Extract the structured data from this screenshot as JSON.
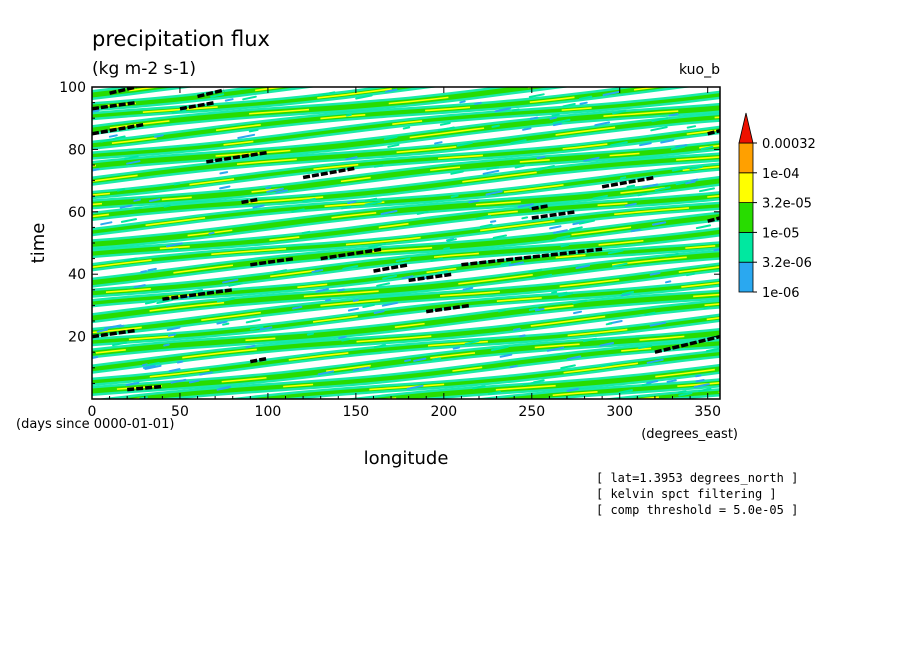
{
  "chart_data": {
    "type": "heatmap",
    "title": "precipitation flux",
    "subtitle": "(kg m-2 s-1)",
    "run_label": "kuo_b",
    "xlabel": "longitude",
    "ylabel": "time",
    "x_units": "(degrees_east)",
    "y_units": "(days since 0000-01-01)",
    "xlim": [
      0,
      357
    ],
    "ylim": [
      0,
      100
    ],
    "x_ticks": [
      0,
      50,
      100,
      150,
      200,
      250,
      300,
      350
    ],
    "y_ticks": [
      20,
      40,
      60,
      80,
      100
    ],
    "colorbar": {
      "levels": [
        "1e-06",
        "3.2e-06",
        "1e-05",
        "3.2e-05",
        "1e-04",
        "0.00032"
      ],
      "colors": [
        "#2aa8f0",
        "#00e8a0",
        "#28dc00",
        "#ffff00",
        "#ffa000",
        "#ee1100"
      ]
    },
    "bands": {
      "slope_days_per_360deg": 20,
      "band_starts_days": [
        -18,
        -14,
        -10,
        -6,
        -2,
        2,
        6,
        10,
        14,
        18,
        22,
        26,
        30,
        34,
        38,
        42,
        46,
        50,
        54,
        58,
        62,
        66,
        70,
        74,
        78,
        82,
        86,
        90,
        94,
        98
      ]
    },
    "threshold_segments": [
      {
        "lon": [
          20,
          40
        ],
        "t": [
          3,
          4
        ]
      },
      {
        "lon": [
          0,
          25
        ],
        "t": [
          20,
          22
        ]
      },
      {
        "lon": [
          40,
          80
        ],
        "t": [
          32,
          35
        ]
      },
      {
        "lon": [
          90,
          100
        ],
        "t": [
          12,
          13
        ]
      },
      {
        "lon": [
          90,
          115
        ],
        "t": [
          43,
          45
        ]
      },
      {
        "lon": [
          130,
          165
        ],
        "t": [
          45,
          48
        ]
      },
      {
        "lon": [
          160,
          180
        ],
        "t": [
          41,
          43
        ]
      },
      {
        "lon": [
          180,
          205
        ],
        "t": [
          38,
          40
        ]
      },
      {
        "lon": [
          190,
          215
        ],
        "t": [
          28,
          30
        ]
      },
      {
        "lon": [
          210,
          290
        ],
        "t": [
          43,
          48
        ]
      },
      {
        "lon": [
          250,
          275
        ],
        "t": [
          58,
          60
        ]
      },
      {
        "lon": [
          250,
          260
        ],
        "t": [
          61,
          62
        ]
      },
      {
        "lon": [
          290,
          320
        ],
        "t": [
          68,
          71
        ]
      },
      {
        "lon": [
          320,
          357
        ],
        "t": [
          15,
          20
        ]
      },
      {
        "lon": [
          0,
          30
        ],
        "t": [
          85,
          88
        ]
      },
      {
        "lon": [
          65,
          100
        ],
        "t": [
          76,
          79
        ]
      },
      {
        "lon": [
          120,
          150
        ],
        "t": [
          71,
          74
        ]
      },
      {
        "lon": [
          85,
          95
        ],
        "t": [
          63,
          64
        ]
      },
      {
        "lon": [
          0,
          25
        ],
        "t": [
          93,
          95
        ]
      },
      {
        "lon": [
          10,
          25
        ],
        "t": [
          98,
          100
        ]
      },
      {
        "lon": [
          50,
          70
        ],
        "t": [
          93,
          95
        ]
      },
      {
        "lon": [
          60,
          75
        ],
        "t": [
          97,
          99
        ]
      },
      {
        "lon": [
          350,
          357
        ],
        "t": [
          85,
          86
        ]
      },
      {
        "lon": [
          350,
          357
        ],
        "t": [
          57,
          58
        ]
      }
    ],
    "notes": [
      "[ lat=1.3953 degrees_north ]",
      "[ kelvin spct filtering ]",
      "[ comp threshold = 5.0e-05 ]"
    ]
  }
}
